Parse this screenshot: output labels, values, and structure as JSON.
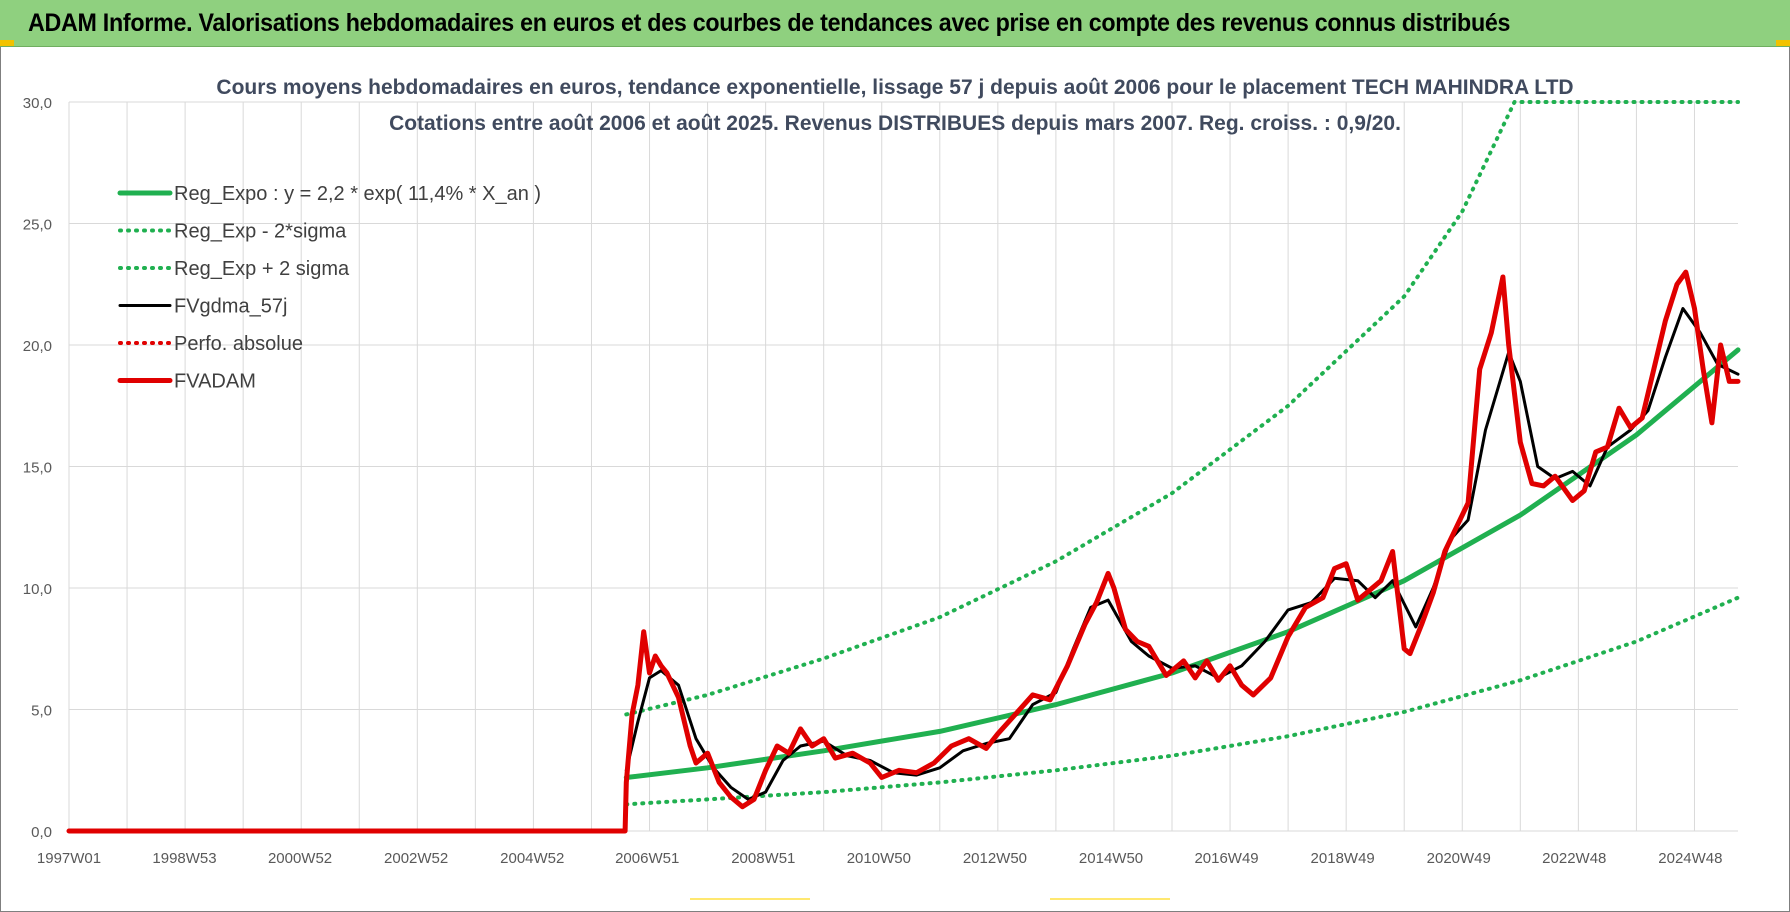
{
  "banner": {
    "title": "ADAM Informe. Valorisations hebdomadaires en euros et des courbes de tendances avec prise en compte des revenus connus distribués"
  },
  "colors": {
    "banner_bg": "#8fd07f",
    "reg_expo": "#20b050",
    "sigma_bands": "#20b050",
    "fvgdma": "#000000",
    "perfo_absolue": "#e00000",
    "fvadam": "#e00000",
    "grid": "#d9d9d9"
  },
  "chart_data": {
    "type": "line",
    "title": "Cours moyens hebdomadaires en euros, tendance exponentielle, lissage 57 j depuis août 2006 pour le placement TECH MAHINDRA LTD",
    "subtitle": "Cotations entre août 2006 et août 2025. Revenus DISTRIBUES depuis mars 2007. Reg. croiss. : 0,9/20.",
    "xlabel": "",
    "ylabel": "",
    "ylim": [
      0,
      30
    ],
    "xlim": [
      1997.0,
      2025.75
    ],
    "y_ticks": [
      "0,0",
      "5,0",
      "10,0",
      "15,0",
      "20,0",
      "25,0",
      "30,0"
    ],
    "y_tick_values": [
      0,
      5,
      10,
      15,
      20,
      25,
      30
    ],
    "x_ticks": [
      {
        "label": "1997W01",
        "x": 1997.0
      },
      {
        "label": "1998W53",
        "x": 1998.99
      },
      {
        "label": "2000W52",
        "x": 2000.98
      },
      {
        "label": "2002W52",
        "x": 2002.98
      },
      {
        "label": "2004W52",
        "x": 2004.98
      },
      {
        "label": "2006W51",
        "x": 2006.96
      },
      {
        "label": "2008W51",
        "x": 2008.96
      },
      {
        "label": "2010W50",
        "x": 2010.95
      },
      {
        "label": "2012W50",
        "x": 2012.95
      },
      {
        "label": "2014W50",
        "x": 2014.95
      },
      {
        "label": "2016W49",
        "x": 2016.94
      },
      {
        "label": "2018W49",
        "x": 2018.94
      },
      {
        "label": "2020W49",
        "x": 2020.94
      },
      {
        "label": "2022W48",
        "x": 2022.93
      },
      {
        "label": "2024W48",
        "x": 2024.93
      }
    ],
    "grid": true,
    "legend_position": "top-left",
    "series": [
      {
        "name": "Reg_Expo : y = 2,2 * exp( 11,4% *  X_an )",
        "style": "solid-thick",
        "color": "#20b050",
        "x": [
          2006.6,
          2008.0,
          2010.0,
          2012.0,
          2014.0,
          2016.0,
          2018.0,
          2020.0,
          2022.0,
          2024.0,
          2025.75
        ],
        "y": [
          2.2,
          2.6,
          3.3,
          4.1,
          5.2,
          6.5,
          8.2,
          10.3,
          13.0,
          16.3,
          19.8
        ]
      },
      {
        "name": "Reg_Exp - 2*sigma",
        "style": "dotted",
        "color": "#20b050",
        "x": [
          2006.6,
          2008.0,
          2010.0,
          2012.0,
          2014.0,
          2016.0,
          2018.0,
          2020.0,
          2022.0,
          2024.0,
          2025.75
        ],
        "y": [
          1.1,
          1.3,
          1.6,
          2.0,
          2.5,
          3.1,
          3.9,
          4.9,
          6.2,
          7.8,
          9.6
        ]
      },
      {
        "name": "Reg_Exp + 2 sigma",
        "style": "dotted",
        "color": "#20b050",
        "x": [
          2006.6,
          2008.0,
          2010.0,
          2012.0,
          2014.0,
          2016.0,
          2018.0,
          2020.0,
          2021.0,
          2021.9,
          2022.5,
          2025.75
        ],
        "y": [
          4.8,
          5.6,
          7.1,
          8.8,
          11.1,
          13.9,
          17.5,
          22.0,
          25.5,
          30.0,
          30.0,
          30.0
        ]
      },
      {
        "name": "FVgdma_57j",
        "style": "solid",
        "color": "#000000",
        "x": [
          2006.6,
          2006.8,
          2007.0,
          2007.2,
          2007.5,
          2007.8,
          2008.1,
          2008.4,
          2008.7,
          2009.0,
          2009.3,
          2009.6,
          2010.0,
          2010.4,
          2010.8,
          2011.2,
          2011.6,
          2012.0,
          2012.4,
          2012.8,
          2013.2,
          2013.6,
          2014.0,
          2014.3,
          2014.6,
          2014.9,
          2015.3,
          2015.6,
          2016.0,
          2016.4,
          2016.8,
          2017.2,
          2017.6,
          2018.0,
          2018.4,
          2018.8,
          2019.2,
          2019.5,
          2019.8,
          2020.2,
          2020.5,
          2020.8,
          2021.1,
          2021.4,
          2021.8,
          2022.0,
          2022.3,
          2022.6,
          2022.9,
          2023.2,
          2023.5,
          2023.9,
          2024.2,
          2024.5,
          2024.8,
          2025.1,
          2025.4,
          2025.75
        ],
        "y": [
          2.5,
          4.5,
          6.3,
          6.6,
          6.0,
          3.8,
          2.6,
          1.8,
          1.3,
          1.6,
          2.9,
          3.5,
          3.7,
          3.1,
          2.9,
          2.4,
          2.3,
          2.6,
          3.3,
          3.6,
          3.8,
          5.2,
          5.7,
          7.5,
          9.2,
          9.5,
          7.8,
          7.2,
          6.7,
          6.8,
          6.3,
          6.8,
          7.8,
          9.1,
          9.4,
          10.4,
          10.3,
          9.6,
          10.3,
          8.4,
          10.0,
          12.0,
          12.8,
          16.5,
          19.7,
          18.5,
          15.0,
          14.5,
          14.8,
          14.2,
          15.8,
          16.5,
          17.3,
          19.5,
          21.5,
          20.5,
          19.2,
          18.8
        ]
      },
      {
        "name": "Perfo. absolue",
        "style": "dotted",
        "color": "#e00000",
        "x": [],
        "y": []
      },
      {
        "name": "FVADAM",
        "style": "solid-thick",
        "color": "#e00000",
        "x": [
          1997.0,
          2006.58,
          2006.6,
          2006.7,
          2006.8,
          2006.9,
          2007.0,
          2007.1,
          2007.2,
          2007.3,
          2007.5,
          2007.7,
          2007.8,
          2008.0,
          2008.2,
          2008.4,
          2008.6,
          2008.8,
          2009.0,
          2009.2,
          2009.4,
          2009.6,
          2009.8,
          2010.0,
          2010.2,
          2010.5,
          2010.8,
          2011.0,
          2011.3,
          2011.6,
          2011.9,
          2012.2,
          2012.5,
          2012.8,
          2013.0,
          2013.3,
          2013.6,
          2013.9,
          2014.2,
          2014.5,
          2014.7,
          2014.9,
          2015.0,
          2015.2,
          2015.4,
          2015.6,
          2015.9,
          2016.2,
          2016.4,
          2016.6,
          2016.8,
          2017.0,
          2017.2,
          2017.4,
          2017.7,
          2018.0,
          2018.3,
          2018.6,
          2018.8,
          2019.0,
          2019.2,
          2019.4,
          2019.6,
          2019.8,
          2020.0,
          2020.1,
          2020.3,
          2020.5,
          2020.7,
          2020.9,
          2021.1,
          2021.3,
          2021.5,
          2021.7,
          2021.8,
          2022.0,
          2022.2,
          2022.4,
          2022.6,
          2022.9,
          2023.1,
          2023.3,
          2023.5,
          2023.7,
          2023.9,
          2024.1,
          2024.3,
          2024.5,
          2024.7,
          2024.85,
          2025.0,
          2025.15,
          2025.3,
          2025.45,
          2025.6,
          2025.75
        ],
        "y": [
          0.0,
          0.0,
          2.0,
          4.8,
          6.0,
          8.2,
          6.5,
          7.2,
          6.8,
          6.5,
          5.5,
          3.5,
          2.8,
          3.2,
          2.0,
          1.4,
          1.0,
          1.3,
          2.5,
          3.5,
          3.2,
          4.2,
          3.5,
          3.8,
          3.0,
          3.2,
          2.8,
          2.2,
          2.5,
          2.4,
          2.8,
          3.5,
          3.8,
          3.4,
          4.0,
          4.8,
          5.6,
          5.4,
          6.8,
          8.5,
          9.4,
          10.6,
          10.0,
          8.3,
          7.8,
          7.6,
          6.4,
          7.0,
          6.3,
          7.0,
          6.2,
          6.8,
          6.0,
          5.6,
          6.3,
          8.0,
          9.2,
          9.6,
          10.8,
          11.0,
          9.5,
          9.9,
          10.3,
          11.5,
          7.5,
          7.3,
          8.5,
          9.8,
          11.5,
          12.5,
          13.5,
          19.0,
          20.5,
          22.8,
          20.0,
          16.0,
          14.3,
          14.2,
          14.6,
          13.6,
          14.0,
          15.6,
          15.8,
          17.4,
          16.6,
          17.0,
          19.0,
          21.0,
          22.5,
          23.0,
          21.5,
          19.0,
          16.8,
          20.0,
          18.5,
          18.5
        ]
      }
    ]
  }
}
